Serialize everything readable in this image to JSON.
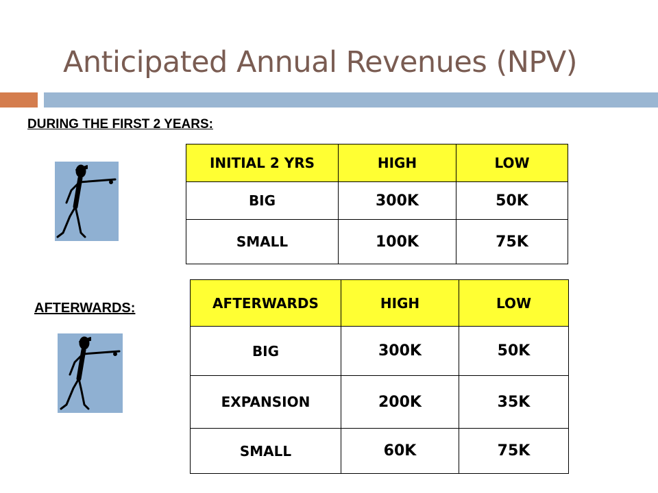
{
  "slide": {
    "title": "Anticipated Annual Revenues (NPV)",
    "heading": "DURING THE FIRST 2 YEARS:",
    "afterwards_label": "AFTERWARDS:"
  },
  "colors": {
    "title": "#7a5c52",
    "accent_bar": "#d47d4e",
    "main_bar": "#9ab6d2",
    "table_header": "#ffff33",
    "figure_background": "#8fb0d2"
  },
  "icons": [
    "pointing-stick-figure-icon",
    "pointing-stick-figure-icon"
  ],
  "table1": {
    "header": [
      "INITIAL 2 YRS",
      "HIGH",
      "LOW"
    ],
    "rows": [
      [
        "BIG",
        "300K",
        "50K"
      ],
      [
        "SMALL",
        "100K",
        "75K"
      ]
    ]
  },
  "table2": {
    "header": [
      "AFTERWARDS",
      "HIGH",
      "LOW"
    ],
    "rows": [
      [
        "BIG",
        "300K",
        "50K"
      ],
      [
        "EXPANSION",
        "200K",
        "35K"
      ],
      [
        "SMALL",
        "60K",
        "75K"
      ]
    ]
  }
}
